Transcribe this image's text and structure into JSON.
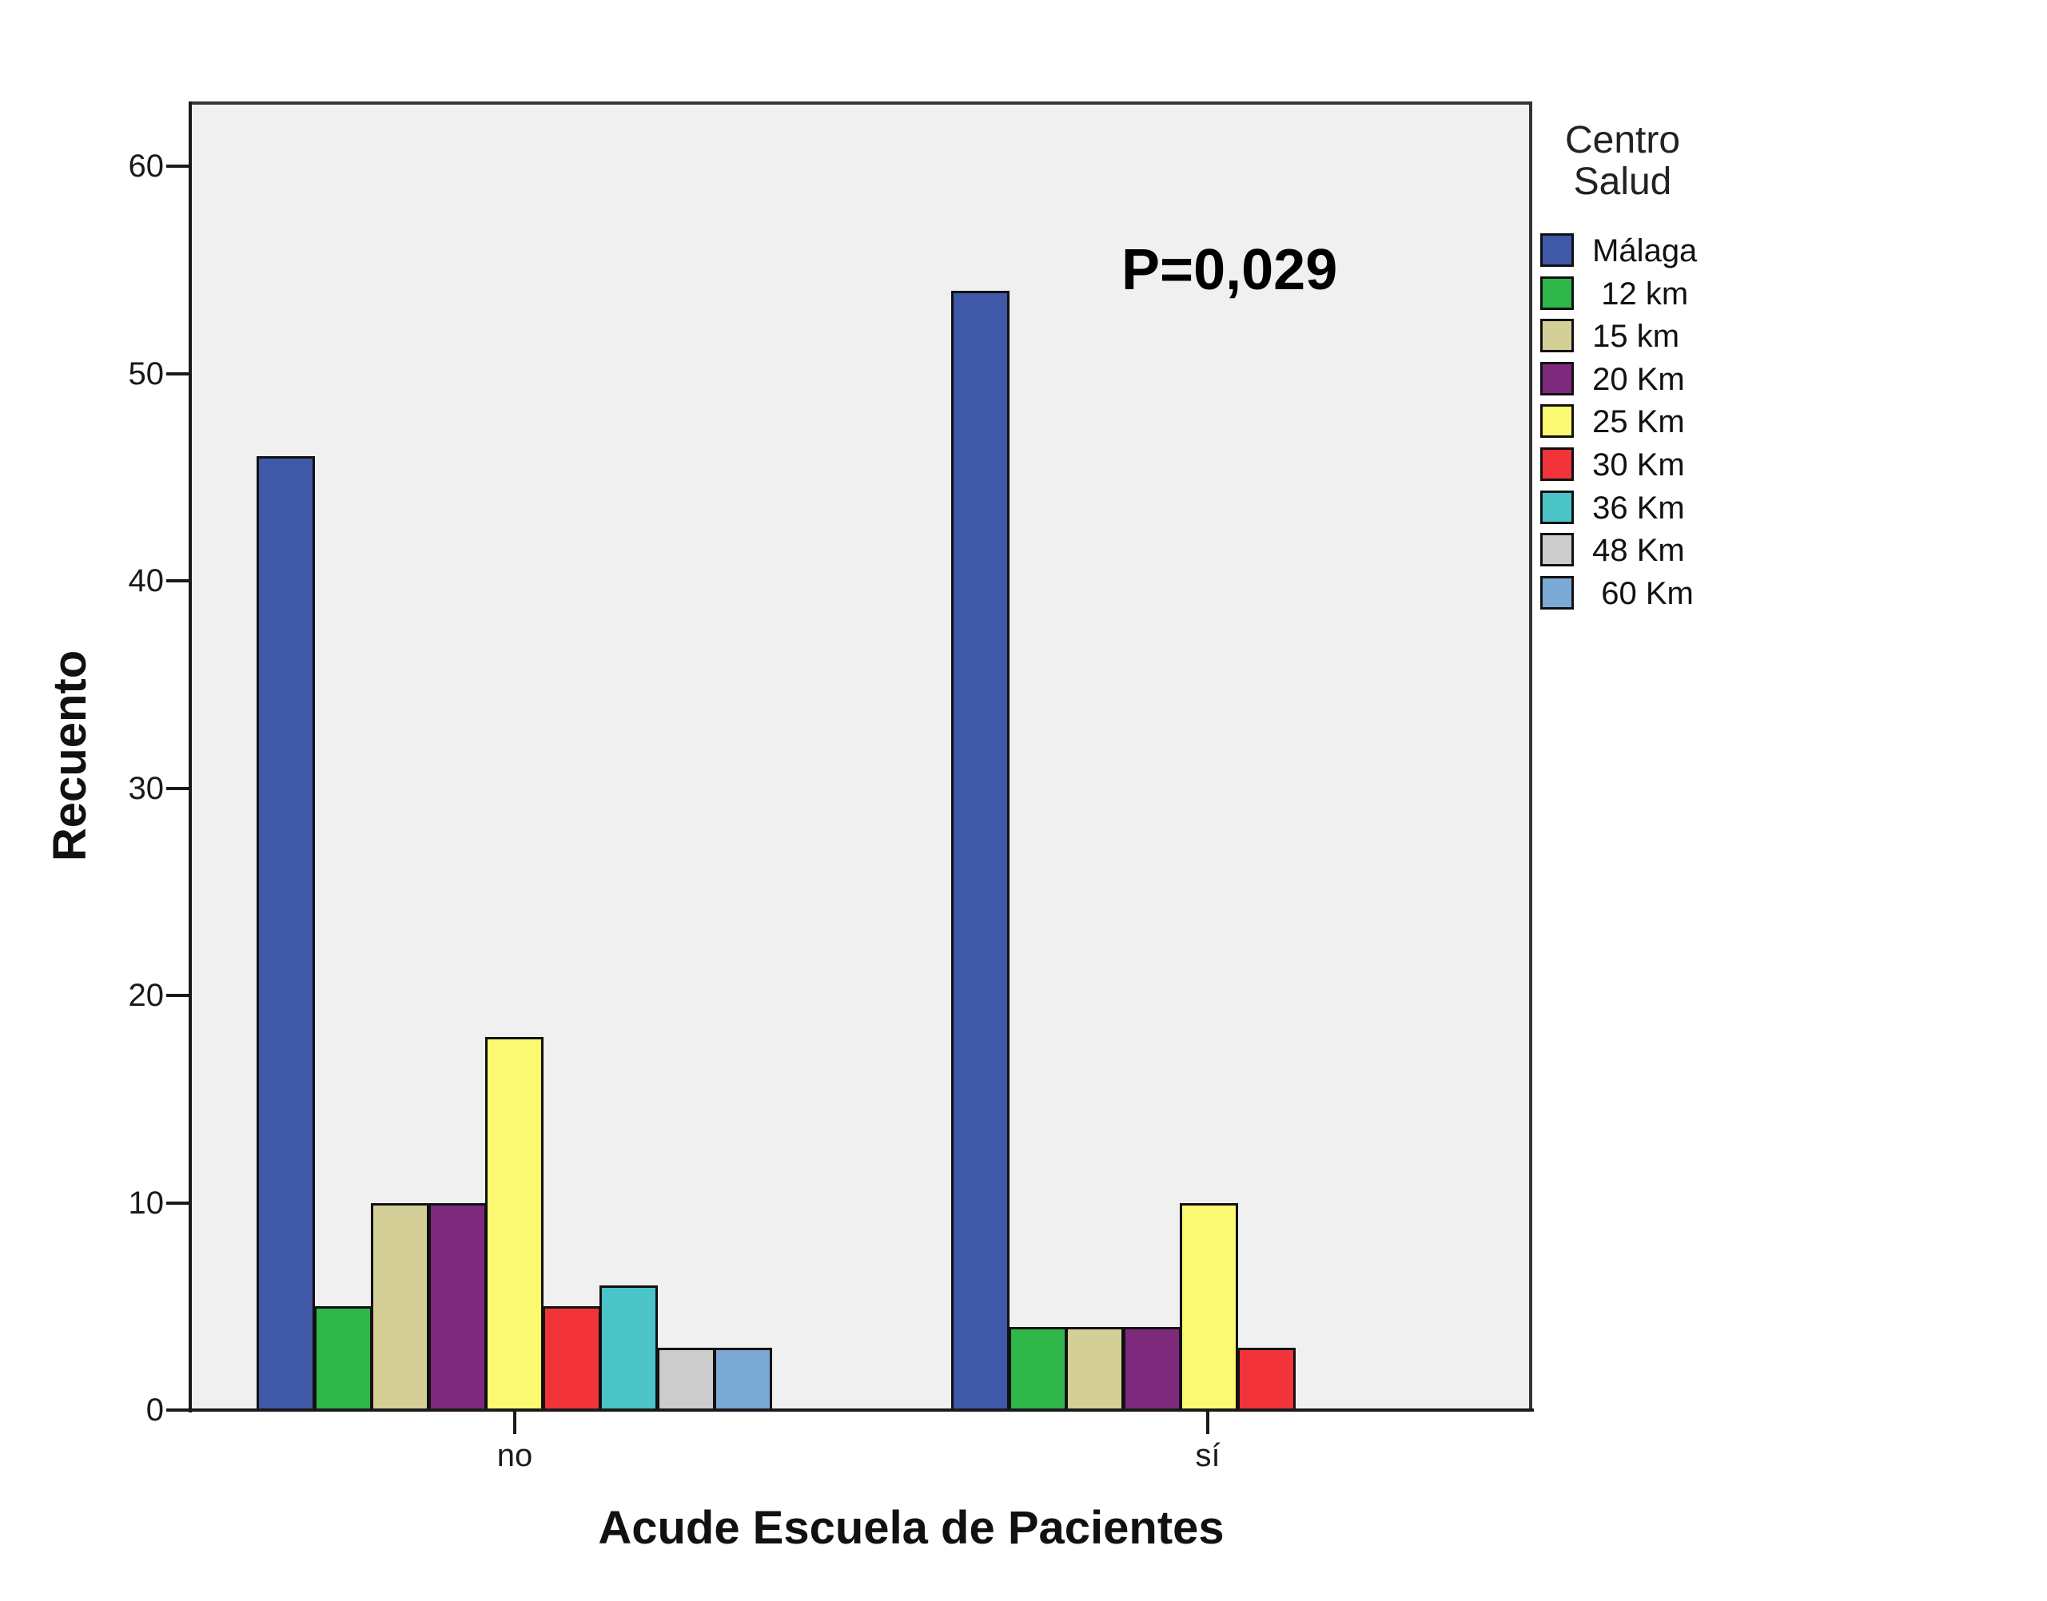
{
  "chart_data": {
    "type": "bar",
    "title": "",
    "xlabel": "Acude Escuela de Pacientes",
    "ylabel": "Recuento",
    "ylim": [
      0,
      63
    ],
    "yticks": [
      0,
      10,
      20,
      30,
      40,
      50,
      60
    ],
    "grid": false,
    "legend_position": "right",
    "legend_title": "Centro Salud",
    "categories": [
      "no",
      "sí"
    ],
    "series": [
      {
        "name": "Málaga",
        "color": "#3f58a8",
        "values": [
          46,
          54
        ]
      },
      {
        "name": "12 km",
        "color": "#2fb74a",
        "values": [
          5,
          4
        ]
      },
      {
        "name": "15 km",
        "color": "#d4cf97",
        "values": [
          10,
          4
        ]
      },
      {
        "name": "20 Km",
        "color": "#7d2a7d",
        "values": [
          10,
          4
        ]
      },
      {
        "name": "25 Km",
        "color": "#fbf871",
        "values": [
          18,
          10
        ]
      },
      {
        "name": "30 Km",
        "color": "#f2333a",
        "values": [
          5,
          3
        ]
      },
      {
        "name": "36 Km",
        "color": "#4bc4c8",
        "values": [
          6,
          0
        ]
      },
      {
        "name": "48 Km",
        "color": "#cccccc",
        "values": [
          3,
          0
        ]
      },
      {
        "name": "60 Km",
        "color": "#7aa9d6",
        "values": [
          3,
          0
        ]
      }
    ],
    "annotations": [
      {
        "text": "P=0,029"
      }
    ]
  },
  "axes": {
    "x_title": "Acude Escuela de Pacientes",
    "y_title": "Recuento",
    "y_tick_labels": [
      "0",
      "10",
      "20",
      "30",
      "40",
      "50",
      "60"
    ],
    "x_tick_labels": [
      "no",
      "sí"
    ]
  },
  "legend": {
    "title_line1": "Centro",
    "title_line2": "Salud",
    "items": [
      " Málaga",
      "  12 km",
      " 15 km",
      " 20 Km",
      " 25 Km",
      " 30 Km",
      " 36 Km",
      " 48 Km",
      "  60 Km"
    ]
  },
  "annotation": {
    "text": "P=0,029"
  }
}
